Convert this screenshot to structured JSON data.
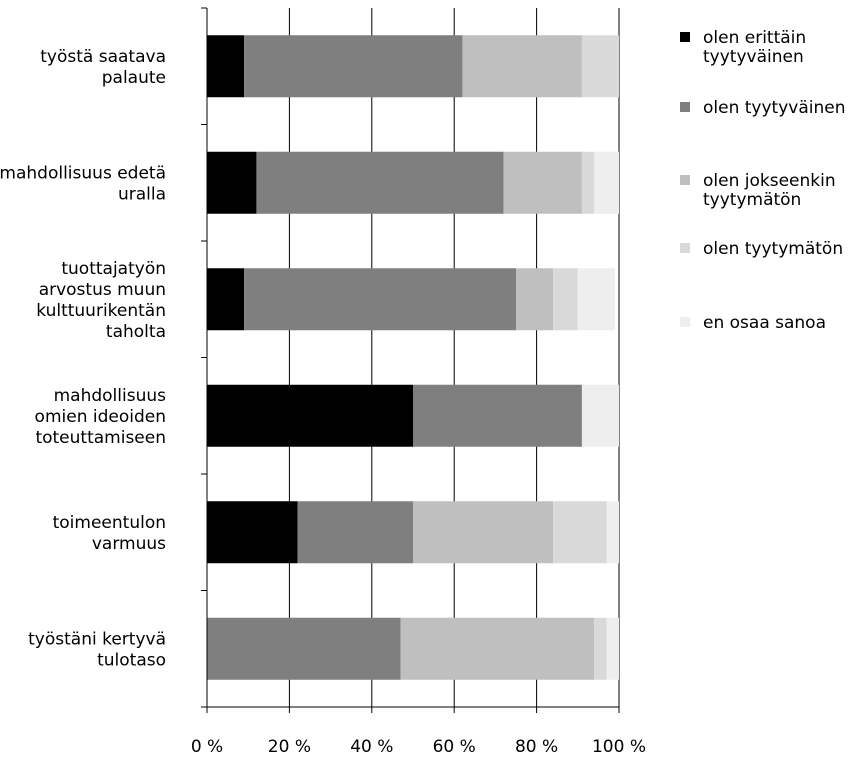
{
  "chart_data": {
    "type": "bar",
    "orientation": "horizontal",
    "stacked": "percent",
    "categories": [
      [
        "työstä saatava",
        "palaute"
      ],
      [
        "mahdollisuus edetä",
        "uralla"
      ],
      [
        "tuottajatyön",
        "arvostus muun",
        "kulttuurikentän",
        "taholta"
      ],
      [
        "mahdollisuus",
        "omien ideoiden",
        "toteuttamiseen"
      ],
      [
        "toimeentulon",
        "varmuus"
      ],
      [
        "työstäni kertyvä",
        "tulotaso"
      ]
    ],
    "series": [
      {
        "name": [
          "olen erittäin",
          "tyytyväinen"
        ],
        "color": "#000000",
        "values": [
          9,
          12,
          9,
          50,
          22,
          0
        ]
      },
      {
        "name": [
          "olen tyytyväinen"
        ],
        "color": "#7f7f7f",
        "values": [
          53,
          60,
          66,
          41,
          28,
          47
        ]
      },
      {
        "name": [
          "olen jokseenkin",
          "tyytymätön"
        ],
        "color": "#bfbfbf",
        "values": [
          29,
          19,
          9,
          0,
          34,
          47
        ]
      },
      {
        "name": [
          "olen tyytymätön"
        ],
        "color": "#d9d9d9",
        "values": [
          9,
          3,
          6,
          0,
          13,
          3
        ]
      },
      {
        "name": [
          "en osaa sanoa"
        ],
        "color": "#eeeeee",
        "values": [
          0,
          6,
          9,
          9,
          3,
          3
        ]
      }
    ],
    "xlim": [
      0,
      100
    ],
    "xticks": [
      "0 %",
      "20 %",
      "40 %",
      "60 %",
      "80 %",
      "100 %"
    ],
    "grid": true,
    "legend_position": "right"
  }
}
